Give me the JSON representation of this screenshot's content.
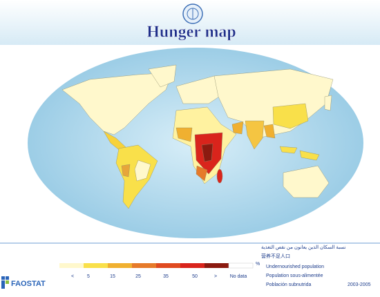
{
  "header": {
    "title": "Hunger map"
  },
  "legend": {
    "ticks": [
      "<",
      5,
      15,
      25,
      35,
      50,
      ">",
      "No data"
    ],
    "unit": "%"
  },
  "footer": {
    "arabic": "نسبة السكان الذين يعانون من نقص التغذية",
    "chinese": "营养不足人口",
    "english": "Undernourished population",
    "french": "Population sous-alimentée",
    "spanish": "Población subnutrida",
    "period": "2003-2005",
    "brand": "FAOSTAT"
  }
}
